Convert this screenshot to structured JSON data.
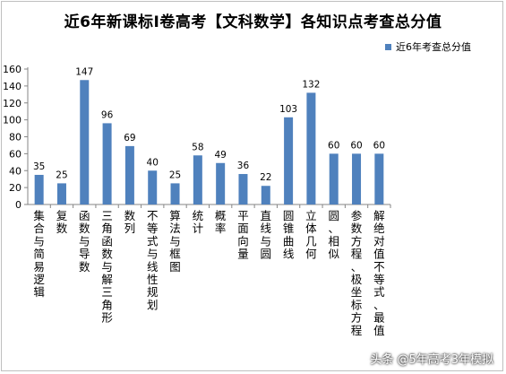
{
  "chart_data": {
    "type": "bar",
    "title": "近6年新课标Ⅰ卷高考【文科数学】各知识点考查总分值",
    "legend": "近6年考查总分值",
    "legend_position": "top-right",
    "grid": false,
    "ylim": [
      0,
      160
    ],
    "yticks": [
      0,
      20,
      40,
      60,
      80,
      100,
      120,
      140,
      160
    ],
    "color": "#4f81bd",
    "categories": [
      "集合与简易逻辑",
      "复数",
      "函数与导数",
      "三角函数与解三角形",
      "数列",
      "不等式与线性规划",
      "算法与框图",
      "统计",
      "概率",
      "平面向量",
      "直线与圆",
      "圆锥曲线",
      "立体几何",
      "圆、相似",
      "参数方程、极坐标方程",
      "解绝对值不等式、最值"
    ],
    "values": [
      35,
      25,
      147,
      96,
      69,
      40,
      25,
      58,
      49,
      36,
      22,
      103,
      132,
      60,
      60,
      60
    ]
  },
  "watermark": "头条 @5年高考3年模拟"
}
